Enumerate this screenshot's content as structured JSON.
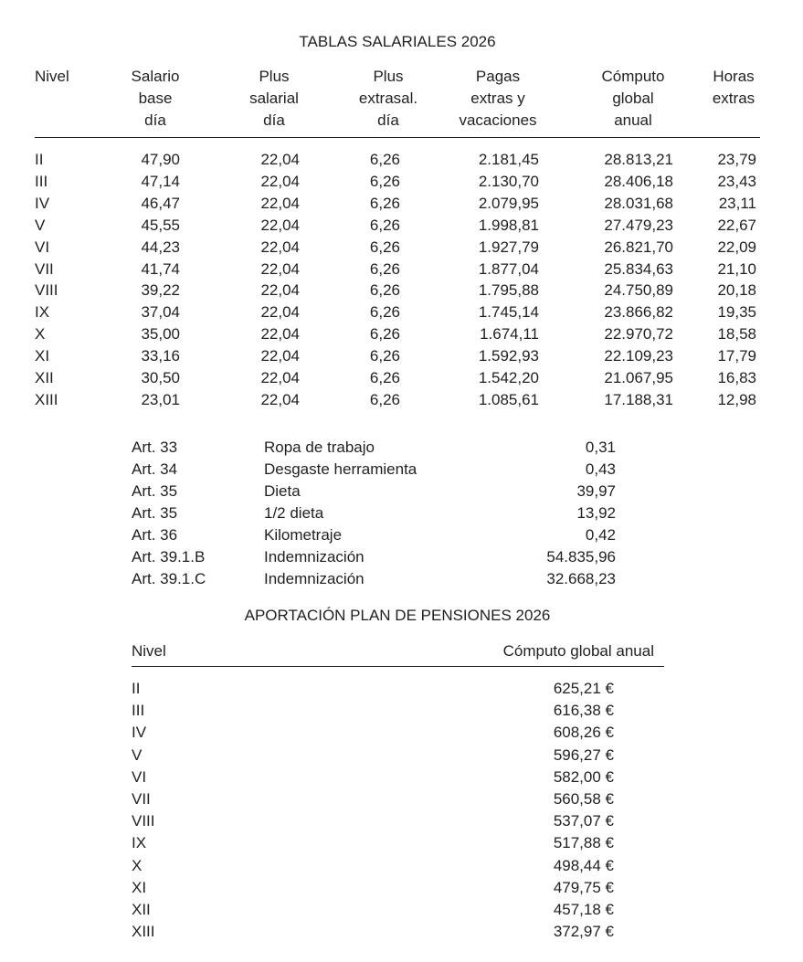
{
  "salary_table": {
    "title": "TABLAS SALARIALES 2026",
    "headers": [
      [
        "Nivel"
      ],
      [
        "Salario",
        "base",
        "día"
      ],
      [
        "Plus",
        "salarial",
        "día"
      ],
      [
        "Plus",
        "extrasal.",
        "día"
      ],
      [
        "Pagas",
        "extras y",
        "vacaciones"
      ],
      [
        "Cómputo",
        "global",
        "anual"
      ],
      [
        "Horas",
        "extras"
      ]
    ],
    "rows": [
      [
        "II",
        "47,90",
        "22,04",
        "6,26",
        "2.181,45",
        "28.813,21",
        "23,79"
      ],
      [
        "III",
        "47,14",
        "22,04",
        "6,26",
        "2.130,70",
        "28.406,18",
        "23,43"
      ],
      [
        "IV",
        "46,47",
        "22,04",
        "6,26",
        "2.079,95",
        "28.031,68",
        "23,11"
      ],
      [
        "V",
        "45,55",
        "22,04",
        "6,26",
        "1.998,81",
        "27.479,23",
        "22,67"
      ],
      [
        "VI",
        "44,23",
        "22,04",
        "6,26",
        "1.927,79",
        "26.821,70",
        "22,09"
      ],
      [
        "VII",
        "41,74",
        "22,04",
        "6,26",
        "1.877,04",
        "25.834,63",
        "21,10"
      ],
      [
        "VIII",
        "39,22",
        "22,04",
        "6,26",
        "1.795,88",
        "24.750,89",
        "20,18"
      ],
      [
        "IX",
        "37,04",
        "22,04",
        "6,26",
        "1.745,14",
        "23.866,82",
        "19,35"
      ],
      [
        "X",
        "35,00",
        "22,04",
        "6,26",
        "1.674,11",
        "22.970,72",
        "18,58"
      ],
      [
        "XI",
        "33,16",
        "22,04",
        "6,26",
        "1.592,93",
        "22.109,23",
        "17,79"
      ],
      [
        "XII",
        "30,50",
        "22,04",
        "6,26",
        "1.542,20",
        "21.067,95",
        "16,83"
      ],
      [
        "XIII",
        "23,01",
        "22,04",
        "6,26",
        "1.085,61",
        "17.188,31",
        "12,98"
      ]
    ]
  },
  "allowances": [
    [
      "Art. 33",
      "Ropa de trabajo",
      "0,31"
    ],
    [
      "Art. 34",
      "Desgaste herramienta",
      "0,43"
    ],
    [
      "Art. 35",
      "Dieta",
      "39,97"
    ],
    [
      "Art. 35",
      "1/2 dieta",
      "13,92"
    ],
    [
      "Art. 36",
      "Kilometraje",
      "0,42"
    ],
    [
      "Art. 39.1.B",
      "Indemnización",
      "54.835,96"
    ],
    [
      "Art. 39.1.C",
      "Indemnización",
      "32.668,23"
    ]
  ],
  "pension_table": {
    "title": "APORTACIÓN PLAN DE PENSIONES 2026",
    "headers": [
      "Nivel",
      "Cómputo global anual"
    ],
    "rows": [
      [
        "II",
        "625,21 €"
      ],
      [
        "III",
        "616,38 €"
      ],
      [
        "IV",
        "608,26 €"
      ],
      [
        "V",
        "596,27 €"
      ],
      [
        "VI",
        "582,00 €"
      ],
      [
        "VII",
        "560,58 €"
      ],
      [
        "VIII",
        "537,07 €"
      ],
      [
        "IX",
        "517,88 €"
      ],
      [
        "X",
        "498,44 €"
      ],
      [
        "XI",
        "479,75 €"
      ],
      [
        "XII",
        "457,18 €"
      ],
      [
        "XIII",
        "372,97 €"
      ]
    ]
  }
}
